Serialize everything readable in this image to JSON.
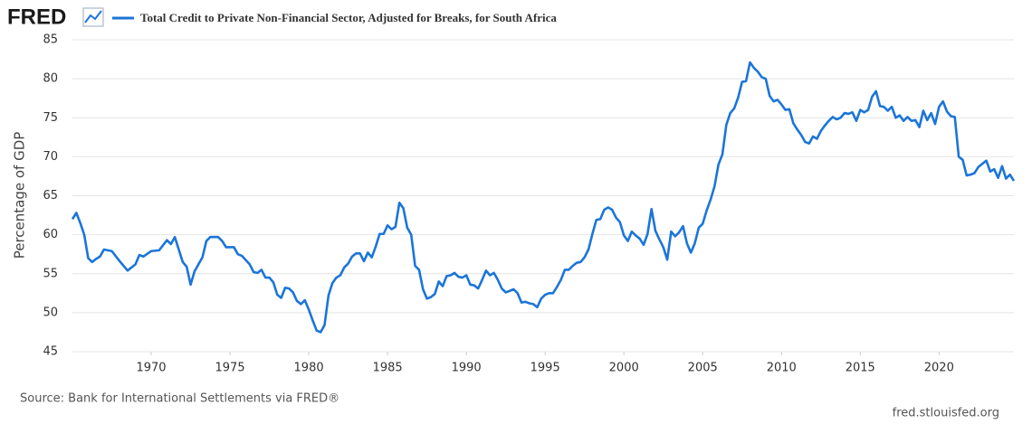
{
  "chart_data": {
    "type": "line",
    "logo": "FRED",
    "y_label": "Percentage of GDP",
    "source": "Source: Bank for International Settlements via FRED®",
    "credit": "fred.stlouisfed.org",
    "xlim": [
      1965,
      2024.75
    ],
    "xticks": [
      1970,
      1975,
      1980,
      1985,
      1990,
      1995,
      2000,
      2005,
      2010,
      2015,
      2020
    ],
    "ylim": [
      45,
      85
    ],
    "yticks": [
      45,
      50,
      55,
      60,
      65,
      70,
      75,
      80,
      85
    ],
    "grid": true,
    "x": [
      1965,
      1965.25,
      1965.5,
      1965.75,
      1966,
      1966.25,
      1966.5,
      1966.75,
      1967,
      1967.5,
      1968,
      1968.5,
      1969,
      1969.25,
      1969.5,
      1970,
      1970.5,
      1971,
      1971.25,
      1971.5,
      1972,
      1972.25,
      1972.5,
      1972.75,
      1973,
      1973.25,
      1973.5,
      1973.75,
      1974.25,
      1974.5,
      1974.75,
      1975.25,
      1975.5,
      1975.75,
      1976.25,
      1976.5,
      1976.75,
      1977,
      1977.25,
      1977.5,
      1977.75,
      1978,
      1978.25,
      1978.5,
      1978.75,
      1979,
      1979.25,
      1979.5,
      1979.75,
      1980,
      1980.25,
      1980.5,
      1980.75,
      1981,
      1981.25,
      1981.5,
      1981.75,
      1982,
      1982.25,
      1982.5,
      1982.75,
      1983,
      1983.25,
      1983.5,
      1983.75,
      1984,
      1984.25,
      1984.5,
      1984.75,
      1985,
      1985.25,
      1985.5,
      1985.75,
      1986,
      1986.25,
      1986.5,
      1986.75,
      1987,
      1987.25,
      1987.5,
      1987.75,
      1988,
      1988.25,
      1988.5,
      1988.75,
      1989,
      1989.25,
      1989.5,
      1989.75,
      1990,
      1990.25,
      1990.5,
      1990.75,
      1991,
      1991.25,
      1991.5,
      1991.75,
      1992,
      1992.25,
      1992.5,
      1992.75,
      1993,
      1993.25,
      1993.5,
      1993.75,
      1994,
      1994.25,
      1994.5,
      1994.75,
      1995,
      1995.25,
      1995.5,
      1995.75,
      1996,
      1996.25,
      1996.5,
      1996.75,
      1997,
      1997.25,
      1997.5,
      1997.75,
      1998,
      1998.25,
      1998.5,
      1998.75,
      1999,
      1999.25,
      1999.5,
      1999.75,
      2000,
      2000.25,
      2000.5,
      2000.75,
      2001,
      2001.25,
      2001.5,
      2001.75,
      2002,
      2002.25,
      2002.5,
      2002.75,
      2003,
      2003.25,
      2003.5,
      2003.75,
      2004,
      2004.25,
      2004.5,
      2004.75,
      2005,
      2005.25,
      2005.5,
      2005.75,
      2006,
      2006.25,
      2006.5,
      2006.75,
      2007,
      2007.25,
      2007.5,
      2007.75,
      2008,
      2008.25,
      2008.5,
      2008.75,
      2009,
      2009.25,
      2009.5,
      2009.75,
      2010,
      2010.25,
      2010.5,
      2010.75,
      2011,
      2011.25,
      2011.5,
      2011.75,
      2012,
      2012.25,
      2012.5,
      2012.75,
      2013,
      2013.25,
      2013.5,
      2013.75,
      2014,
      2014.25,
      2014.5,
      2014.75,
      2015,
      2015.25,
      2015.5,
      2015.75,
      2016,
      2016.25,
      2016.5,
      2016.75,
      2017,
      2017.25,
      2017.5,
      2017.75,
      2018,
      2018.25,
      2018.5,
      2018.75,
      2019,
      2019.25,
      2019.5,
      2019.75,
      2020,
      2020.25,
      2020.5,
      2020.75,
      2021,
      2021.25,
      2021.5,
      2021.75,
      2022,
      2022.25,
      2022.5,
      2022.75,
      2023,
      2023.25,
      2023.5,
      2023.75,
      2024,
      2024.25,
      2024.5,
      2024.75
    ],
    "series": [
      {
        "name": "Total Credit to Private Non-Financial Sector, Adjusted for Breaks, for South Africa",
        "color": "#1b75d9",
        "values": [
          62,
          62.8,
          61.5,
          60,
          57,
          56.5,
          56.9,
          57.2,
          58.1,
          57.9,
          56.6,
          55.4,
          56.2,
          57.4,
          57.2,
          57.9,
          58,
          59.3,
          58.8,
          59.7,
          56.5,
          55.9,
          53.6,
          55.3,
          56.2,
          57.1,
          59.2,
          59.7,
          59.7,
          59.2,
          58.4,
          58.4,
          57.5,
          57.3,
          56.2,
          55.2,
          55.1,
          55.5,
          54.5,
          54.5,
          53.9,
          52.3,
          51.9,
          53.2,
          53.1,
          52.6,
          51.5,
          51.1,
          51.6,
          50.4,
          49,
          47.7,
          47.5,
          48.4,
          52.2,
          53.8,
          54.5,
          54.8,
          55.8,
          56.3,
          57.2,
          57.6,
          57.6,
          56.6,
          57.7,
          57.1,
          58.5,
          60.1,
          60.1,
          61.2,
          60.7,
          61,
          64.1,
          63.4,
          60.9,
          60,
          56,
          55.5,
          53,
          51.8,
          52,
          52.4,
          54,
          53.4,
          54.7,
          54.8,
          55.1,
          54.6,
          54.5,
          54.8,
          53.6,
          53.5,
          53.1,
          54.2,
          55.4,
          54.8,
          55.1,
          54.2,
          53.1,
          52.6,
          52.8,
          53,
          52.5,
          51.3,
          51.4,
          51.2,
          51.1,
          50.7,
          51.8,
          52.3,
          52.5,
          52.5,
          53.3,
          54.2,
          55.5,
          55.5,
          56,
          56.4,
          56.5,
          57.1,
          58.1,
          60.1,
          61.9,
          62,
          63.2,
          63.5,
          63.2,
          62.2,
          61.6,
          59.9,
          59.2,
          60.4,
          59.9,
          59.5,
          58.7,
          60.1,
          63.3,
          60.5,
          59.4,
          58.4,
          56.8,
          60.4,
          59.8,
          60.3,
          61.1,
          58.9,
          57.7,
          58.9,
          60.9,
          61.4,
          63.1,
          64.5,
          66.2,
          69,
          70.3,
          74.1,
          75.6,
          76.2,
          77.6,
          79.6,
          79.7,
          82.1,
          81.4,
          80.9,
          80.2,
          80,
          77.8,
          77.1,
          77.3,
          76.7,
          76,
          76.1,
          74.3,
          73.5,
          72.8,
          71.9,
          71.7,
          72.6,
          72.3,
          73.3,
          74,
          74.6,
          75.1,
          74.8,
          75,
          75.6,
          75.5,
          75.7,
          74.6,
          76,
          75.7,
          76,
          77.7,
          78.4,
          76.5,
          76.4,
          75.9,
          76.4,
          75,
          75.3,
          74.6,
          75.1,
          74.6,
          74.7,
          73.8,
          75.9,
          74.7,
          75.6,
          74.2,
          76.4,
          77.1,
          75.8,
          75.2,
          75.1,
          70,
          69.6,
          67.6,
          67.7,
          67.9,
          68.7,
          69.1,
          69.5,
          68.1,
          68.4,
          67.3,
          68.8,
          67.2,
          67.7,
          66.9
        ]
      }
    ]
  }
}
